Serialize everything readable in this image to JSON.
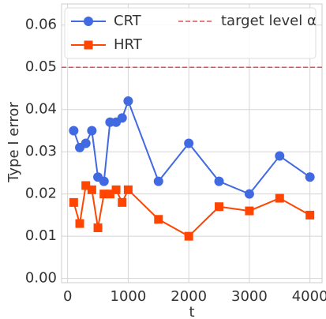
{
  "chart_data": {
    "type": "line",
    "x_label": "t",
    "y_label": "Type I error",
    "x": [
      100,
      200,
      300,
      400,
      500,
      600,
      700,
      800,
      900,
      1000,
      1500,
      2000,
      2500,
      3000,
      3500,
      4000
    ],
    "series": [
      {
        "name": "CRT",
        "color": "#4169e1",
        "marker": "circle",
        "values": [
          0.035,
          0.031,
          0.032,
          0.035,
          0.024,
          0.023,
          0.037,
          0.037,
          0.038,
          0.042,
          0.023,
          0.032,
          0.023,
          0.02,
          0.029,
          0.024
        ]
      },
      {
        "name": "HRT",
        "color": "#ff4500",
        "marker": "square",
        "values": [
          0.018,
          0.013,
          0.022,
          0.021,
          0.012,
          0.02,
          0.02,
          0.021,
          0.018,
          0.021,
          0.014,
          0.01,
          0.017,
          0.016,
          0.019,
          0.015
        ]
      }
    ],
    "target": {
      "name": "target level α",
      "value": 0.05,
      "color": "#e0505a"
    },
    "xlim": [
      -100,
      4200
    ],
    "xticks": [
      0,
      1000,
      2000,
      3000,
      4000
    ],
    "ylim": [
      -0.001,
      0.065
    ],
    "yticks": [
      {
        "value": 0,
        "label": "0.00"
      },
      {
        "value": 0.01,
        "label": "0.01"
      },
      {
        "value": 0.02,
        "label": "0.02"
      },
      {
        "value": 0.03,
        "label": "0.03"
      },
      {
        "value": 0.04,
        "label": "0.04"
      },
      {
        "value": 0.05,
        "label": "0.05"
      },
      {
        "value": 0.06,
        "label": "0.06"
      }
    ],
    "grid": true,
    "legend": "upper"
  }
}
